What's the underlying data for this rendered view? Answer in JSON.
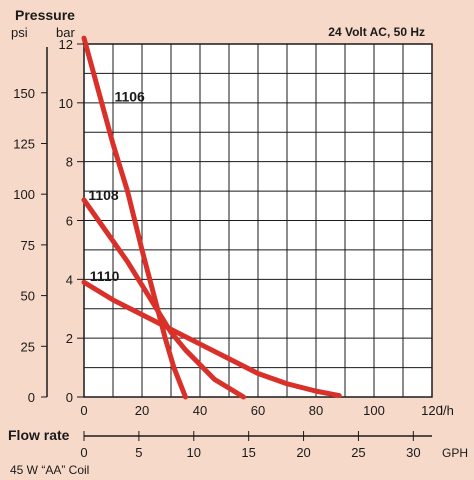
{
  "chart_data": {
    "type": "line",
    "title": "Pressure",
    "subtitle": "24 Volt AC, 50 Hz",
    "left_axis_unit": "psi",
    "right_axis_unit": "bar",
    "bar_ticks": [
      0,
      2,
      4,
      6,
      8,
      10,
      12
    ],
    "psi_ticks": [
      0,
      25,
      50,
      75,
      100,
      125,
      150
    ],
    "ylim_bar": [
      0,
      12
    ],
    "x_label": "Flow rate",
    "x_unit": "l/h",
    "x_ticks": [
      0,
      20,
      40,
      60,
      80,
      100,
      120
    ],
    "xlim": [
      0,
      120
    ],
    "gph_unit": "GPH",
    "gph_ticks": [
      0,
      5,
      10,
      15,
      20,
      25,
      30
    ],
    "grid": true,
    "footnote": "45 W “AA” Coil",
    "line_color": "#d9312a",
    "series": [
      {
        "name": "1106",
        "points": [
          [
            0,
            12.2
          ],
          [
            5,
            10.4
          ],
          [
            10,
            8.6
          ],
          [
            15,
            7.0
          ],
          [
            20,
            5.0
          ],
          [
            24,
            3.5
          ],
          [
            28,
            2.0
          ],
          [
            31,
            1.0
          ],
          [
            35,
            0.0
          ]
        ]
      },
      {
        "name": "1108",
        "points": [
          [
            0,
            6.7
          ],
          [
            5,
            6.0
          ],
          [
            10,
            5.3
          ],
          [
            15,
            4.6
          ],
          [
            20,
            3.8
          ],
          [
            25,
            3.0
          ],
          [
            30,
            2.2
          ],
          [
            35,
            1.6
          ],
          [
            40,
            1.1
          ],
          [
            45,
            0.6
          ],
          [
            50,
            0.3
          ],
          [
            55,
            0.0
          ]
        ]
      },
      {
        "name": "1110",
        "points": [
          [
            0,
            3.9
          ],
          [
            10,
            3.3
          ],
          [
            20,
            2.8
          ],
          [
            30,
            2.3
          ],
          [
            40,
            1.8
          ],
          [
            50,
            1.3
          ],
          [
            60,
            0.8
          ],
          [
            70,
            0.45
          ],
          [
            80,
            0.2
          ],
          [
            88,
            0.05
          ]
        ]
      }
    ]
  }
}
